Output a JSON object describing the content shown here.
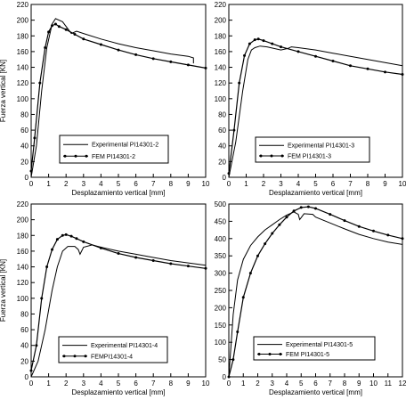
{
  "chart_data": [
    {
      "type": "line",
      "xlabel": "Desplazamiento vertical [mm]",
      "ylabel": "Fuerza vertical [KN]",
      "xlim": [
        0,
        10
      ],
      "ylim": [
        0,
        220
      ],
      "xticks": [
        0,
        1,
        2,
        3,
        4,
        5,
        6,
        7,
        8,
        9,
        10
      ],
      "yticks": [
        0,
        20,
        40,
        60,
        80,
        100,
        120,
        140,
        160,
        180,
        200,
        220
      ],
      "grid": false,
      "legend": "bottom-center",
      "series": [
        {
          "name": "Experimental PI14301-2",
          "marker": "none",
          "x": [
            0,
            0.3,
            0.6,
            0.9,
            1.2,
            1.4,
            1.8,
            2.3,
            2.6,
            3,
            4,
            5,
            6,
            7,
            8,
            9,
            9.3,
            9.3
          ],
          "y": [
            0,
            40,
            110,
            165,
            195,
            202,
            198,
            183,
            186,
            183,
            176,
            170,
            165,
            161,
            157,
            154,
            152,
            145
          ]
        },
        {
          "name": "FEM PI14301-2",
          "marker": "circle",
          "x": [
            0,
            0.2,
            0.5,
            0.8,
            1,
            1.2,
            1.4,
            1.6,
            2,
            2.5,
            3,
            4,
            5,
            6,
            7,
            8,
            9,
            10
          ],
          "y": [
            8,
            50,
            120,
            165,
            185,
            193,
            195,
            192,
            188,
            182,
            176,
            169,
            162,
            156,
            151,
            147,
            143,
            139
          ]
        }
      ]
    },
    {
      "type": "line",
      "xlabel": "Desplazamiento vertical [mm]",
      "ylabel": "",
      "xlim": [
        0,
        10
      ],
      "ylim": [
        0,
        220
      ],
      "xticks": [
        0,
        1,
        2,
        3,
        4,
        5,
        6,
        7,
        8,
        9,
        10
      ],
      "yticks": [
        0,
        20,
        40,
        60,
        80,
        100,
        120,
        140,
        160,
        180,
        200,
        220
      ],
      "grid": false,
      "legend": "bottom-center",
      "series": [
        {
          "name": "Experimental PI14301-3",
          "marker": "none",
          "x": [
            0,
            0.4,
            0.8,
            1.1,
            1.3,
            1.5,
            1.8,
            2.2,
            2.6,
            3,
            3.4,
            3.6,
            4,
            5,
            6,
            7,
            8,
            9,
            10
          ],
          "y": [
            0,
            45,
            110,
            150,
            162,
            165,
            167,
            166,
            164,
            162,
            164,
            166,
            165,
            162,
            158,
            154,
            150,
            146,
            142
          ]
        },
        {
          "name": "FEM PI14301-3",
          "marker": "circle",
          "x": [
            0,
            0.3,
            0.6,
            0.9,
            1.2,
            1.5,
            1.7,
            2,
            2.5,
            3,
            4,
            5,
            6,
            7,
            8,
            9,
            10
          ],
          "y": [
            5,
            60,
            120,
            155,
            170,
            175,
            176,
            174,
            170,
            166,
            160,
            154,
            148,
            142,
            138,
            134,
            131
          ]
        }
      ]
    },
    {
      "type": "line",
      "xlabel": "Desplazamiento vertical [mm]",
      "ylabel": "Fuerza vertical [KN]",
      "xlim": [
        0,
        10
      ],
      "ylim": [
        0,
        220
      ],
      "xticks": [
        0,
        1,
        2,
        3,
        4,
        5,
        6,
        7,
        8,
        9,
        10
      ],
      "yticks": [
        0,
        20,
        40,
        60,
        80,
        100,
        120,
        140,
        160,
        180,
        200,
        220
      ],
      "grid": false,
      "legend": "bottom-center",
      "series": [
        {
          "name": "Experimental PI14301-4",
          "marker": "none",
          "x": [
            0,
            0.4,
            0.8,
            1.2,
            1.5,
            1.8,
            2.1,
            2.5,
            2.7,
            2.8,
            3,
            3.5,
            4,
            5,
            6,
            7,
            8,
            9,
            10
          ],
          "y": [
            0,
            20,
            60,
            110,
            140,
            160,
            166,
            166,
            162,
            156,
            165,
            168,
            165,
            160,
            156,
            152,
            148,
            145,
            142
          ]
        },
        {
          "name": "FEM PI14301-4",
          "marker": "circle",
          "x": [
            0,
            0.3,
            0.6,
            0.9,
            1.2,
            1.5,
            1.8,
            2,
            2.3,
            2.6,
            3,
            4,
            5,
            6,
            7,
            8,
            9,
            10
          ],
          "y": [
            8,
            40,
            100,
            140,
            162,
            175,
            180,
            181,
            179,
            176,
            172,
            164,
            157,
            152,
            148,
            144,
            141,
            138
          ]
        }
      ]
    },
    {
      "type": "line",
      "xlabel": "Desplazamiento vertical [mm]",
      "ylabel": "",
      "xlim": [
        0,
        12
      ],
      "ylim": [
        0,
        500
      ],
      "xticks": [
        0,
        1,
        2,
        3,
        4,
        5,
        6,
        7,
        8,
        9,
        10,
        11,
        12
      ],
      "yticks": [
        0,
        50,
        100,
        150,
        200,
        250,
        300,
        350,
        400,
        450,
        500
      ],
      "grid": false,
      "legend": "bottom-center",
      "series": [
        {
          "name": "Experimental PI14301-5",
          "marker": "none",
          "x": [
            0,
            0.3,
            0.6,
            1,
            1.5,
            2,
            2.5,
            3,
            3.5,
            4,
            4.5,
            4.8,
            4.9,
            5.2,
            5.8,
            6,
            7,
            8,
            9,
            10,
            11,
            12
          ],
          "y": [
            0,
            180,
            280,
            340,
            380,
            405,
            425,
            440,
            455,
            468,
            477,
            470,
            455,
            472,
            470,
            462,
            445,
            428,
            412,
            400,
            390,
            383
          ]
        },
        {
          "name": "FEM PI14301-5",
          "marker": "circle",
          "x": [
            0,
            0.3,
            0.6,
            1,
            1.5,
            2,
            2.5,
            3,
            3.5,
            4,
            4.5,
            5,
            5.5,
            6,
            7,
            8,
            9,
            10,
            11,
            12
          ],
          "y": [
            0,
            50,
            130,
            230,
            300,
            350,
            385,
            415,
            440,
            462,
            480,
            490,
            492,
            487,
            470,
            452,
            435,
            422,
            410,
            400
          ]
        }
      ]
    }
  ],
  "chart_texts": [
    {
      "xlabel": "Desplazamiento vertical [mm]",
      "ylabel": "Fuerza vertical [KN]",
      "legend": [
        "Experimental PI14301-2",
        "FEM PI14301-2"
      ]
    },
    {
      "xlabel": "Desplazamiento vertical [mm]",
      "ylabel": "",
      "legend": [
        "Experimental PI14301-3",
        "FEM PI14301-3"
      ]
    },
    {
      "xlabel": "Desplazamiento vertical [mm]",
      "ylabel": "Fuerza vertical [KN]",
      "legend": [
        "Experimental PI14301-4",
        "FEMPI14301-4"
      ]
    },
    {
      "xlabel": "Desplazamiento vertical [mm]",
      "ylabel": "",
      "legend": [
        "Experimental PI14301-5",
        "FEM PI14301-5"
      ]
    }
  ]
}
